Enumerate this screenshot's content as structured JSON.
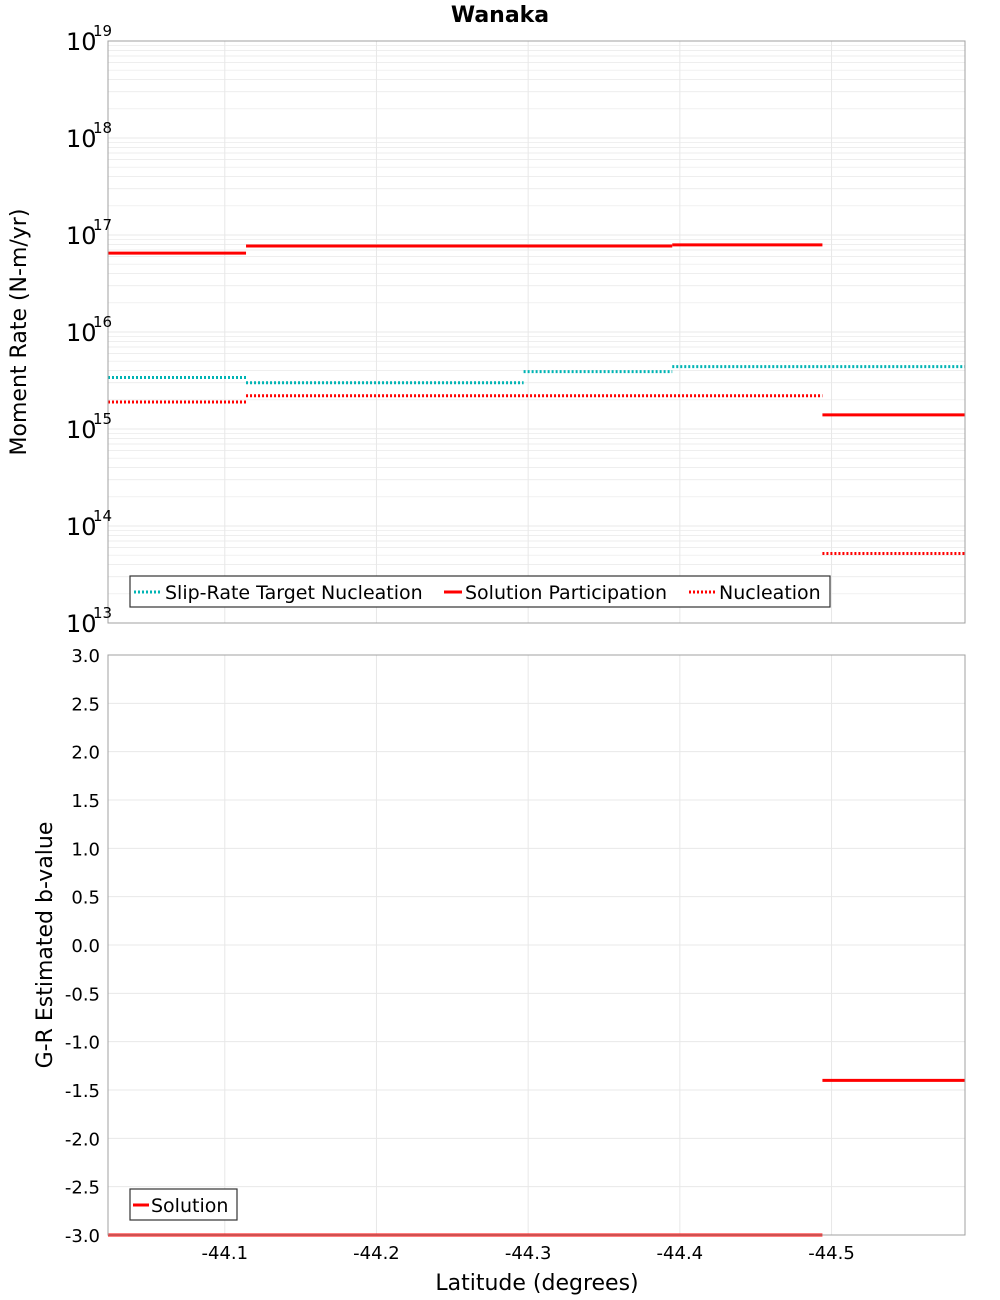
{
  "title": "Wanaka",
  "colors": {
    "target": "#00b4b4",
    "solution": "#ff0000",
    "grid": "#e8e8e8",
    "frame": "#a0a0a0"
  },
  "chart_data": [
    {
      "type": "line",
      "style": "step",
      "title": "Wanaka",
      "xlabel": "",
      "ylabel": "Moment Rate (N-m/yr)",
      "yscale": "log",
      "xlim": [
        -44.023,
        -44.588
      ],
      "ylim": [
        10000000000000.0,
        1e+19
      ],
      "ytick_exponents": [
        13,
        14,
        15,
        16,
        17,
        18,
        19
      ],
      "grid": true,
      "legend_position": "bottom-left",
      "series": [
        {
          "name": "Slip-Rate Target Nucleation",
          "dash": "dotted",
          "color": "#00b4b4",
          "segments": [
            {
              "x": [
                -44.023,
                -44.114
              ],
              "y": 3400000000000000.0
            },
            {
              "x": [
                -44.114,
                -44.297
              ],
              "y": 3000000000000000.0
            },
            {
              "x": [
                -44.297,
                -44.395
              ],
              "y": 3900000000000000.0
            },
            {
              "x": [
                -44.395,
                -44.588
              ],
              "y": 4400000000000000.0
            }
          ]
        },
        {
          "name": "Solution Participation",
          "dash": "solid",
          "color": "#ff0000",
          "segments": [
            {
              "x": [
                -44.023,
                -44.114
              ],
              "y": 6.5e+16
            },
            {
              "x": [
                -44.114,
                -44.395
              ],
              "y": 7.7e+16
            },
            {
              "x": [
                -44.395,
                -44.494
              ],
              "y": 7.9e+16
            },
            {
              "x": [
                -44.494,
                -44.588
              ],
              "y": 1400000000000000.0
            }
          ]
        },
        {
          "name": "Nucleation",
          "dash": "dotted",
          "color": "#ff0000",
          "segments": [
            {
              "x": [
                -44.023,
                -44.114
              ],
              "y": 1900000000000000.0
            },
            {
              "x": [
                -44.114,
                -44.494
              ],
              "y": 2200000000000000.0
            },
            {
              "x": [
                -44.494,
                -44.588
              ],
              "y": 52000000000000.0
            }
          ]
        }
      ]
    },
    {
      "type": "line",
      "style": "step",
      "xlabel": "Latitude (degrees)",
      "ylabel": "G-R Estimated b-value",
      "xlim": [
        -44.023,
        -44.588
      ],
      "ylim": [
        -3.0,
        3.0
      ],
      "yticks": [
        "3.0",
        "2.5",
        "2.0",
        "1.5",
        "1.0",
        "0.5",
        "0.0",
        "-0.5",
        "-1.0",
        "-1.5",
        "-2.0",
        "-2.5",
        "-3.0"
      ],
      "xticks": [
        "-44.1",
        "-44.2",
        "-44.3",
        "-44.4",
        "-44.5"
      ],
      "grid": true,
      "legend_position": "bottom-left",
      "series": [
        {
          "name": "Solution",
          "dash": "solid",
          "color": "#ff0000",
          "segments": [
            {
              "x": [
                -44.023,
                -44.494
              ],
              "y": -3.0
            },
            {
              "x": [
                -44.494,
                -44.588
              ],
              "y": -1.4
            }
          ]
        }
      ]
    }
  ]
}
